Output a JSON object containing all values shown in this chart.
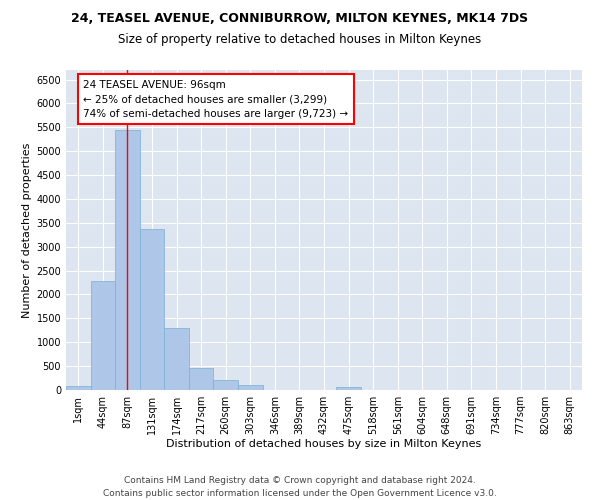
{
  "title": "24, TEASEL AVENUE, CONNIBURROW, MILTON KEYNES, MK14 7DS",
  "subtitle": "Size of property relative to detached houses in Milton Keynes",
  "xlabel": "Distribution of detached houses by size in Milton Keynes",
  "ylabel": "Number of detached properties",
  "bar_color": "#aec6e8",
  "bar_edge_color": "#7bafd4",
  "background_color": "#dde6f0",
  "grid_color": "white",
  "tick_labels": [
    "1sqm",
    "44sqm",
    "87sqm",
    "131sqm",
    "174sqm",
    "217sqm",
    "260sqm",
    "303sqm",
    "346sqm",
    "389sqm",
    "432sqm",
    "475sqm",
    "518sqm",
    "561sqm",
    "604sqm",
    "648sqm",
    "691sqm",
    "734sqm",
    "777sqm",
    "820sqm",
    "863sqm"
  ],
  "bar_heights": [
    75,
    2280,
    5450,
    3380,
    1300,
    470,
    215,
    100,
    0,
    0,
    0,
    55,
    0,
    0,
    0,
    0,
    0,
    0,
    0,
    0,
    0
  ],
  "ylim": [
    0,
    6700
  ],
  "yticks": [
    0,
    500,
    1000,
    1500,
    2000,
    2500,
    3000,
    3500,
    4000,
    4500,
    5000,
    5500,
    6000,
    6500
  ],
  "property_line_x": 2,
  "annotation_text": "24 TEASEL AVENUE: 96sqm\n← 25% of detached houses are smaller (3,299)\n74% of semi-detached houses are larger (9,723) →",
  "annotation_box_color": "white",
  "annotation_box_edge_color": "red",
  "footnote": "Contains HM Land Registry data © Crown copyright and database right 2024.\nContains public sector information licensed under the Open Government Licence v3.0.",
  "title_fontsize": 9,
  "subtitle_fontsize": 8.5,
  "xlabel_fontsize": 8,
  "ylabel_fontsize": 8,
  "tick_fontsize": 7,
  "annotation_fontsize": 7.5,
  "footnote_fontsize": 6.5
}
